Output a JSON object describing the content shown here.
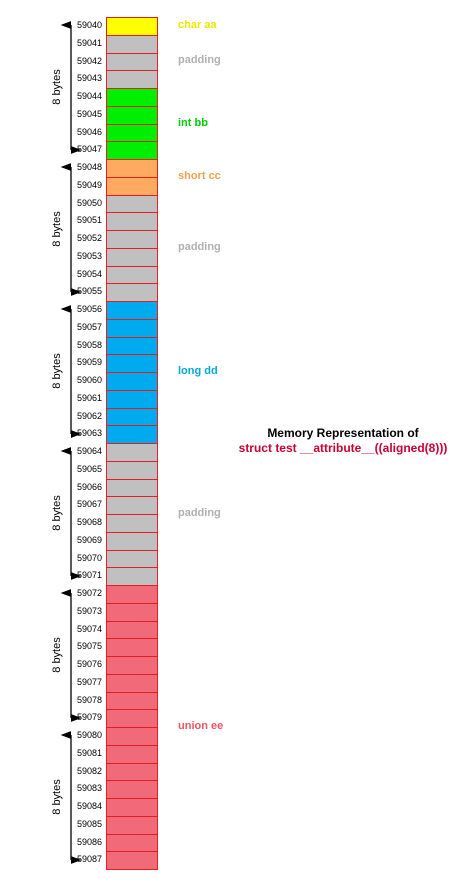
{
  "diagram": {
    "title_line1": "Memory Representation of",
    "title_line2": "struct test __attribute__((aligned(8)))",
    "title_line2_color": "#cc0033",
    "start_address": 59040,
    "end_address": 59087,
    "group_label": "8 bytes",
    "groups": [
      {
        "label": "8 bytes"
      },
      {
        "label": "8 bytes"
      },
      {
        "label": "8 bytes"
      },
      {
        "label": "8 bytes"
      },
      {
        "label": "8 bytes"
      },
      {
        "label": "8 bytes"
      }
    ],
    "blocks": [
      {
        "label": "char aa",
        "count": 1,
        "color": "#ffff00",
        "label_color": "#e8e800"
      },
      {
        "label": "padding",
        "count": 3,
        "color": "#c0c0c0",
        "label_color": "#b0b0b0"
      },
      {
        "label": "int bb",
        "count": 4,
        "color": "#00ee00",
        "label_color": "#00cc00"
      },
      {
        "label": "short cc",
        "count": 2,
        "color": "#ffaa60",
        "label_color": "#f0a050"
      },
      {
        "label": "padding",
        "count": 6,
        "color": "#c0c0c0",
        "label_color": "#b0b0b0"
      },
      {
        "label": "long dd",
        "count": 8,
        "color": "#00aaee",
        "label_color": "#00a8d8"
      },
      {
        "label": "padding",
        "count": 8,
        "color": "#c0c0c0",
        "label_color": "#b0b0b0"
      },
      {
        "label": "union ee",
        "count": 16,
        "color": "#f06a7a",
        "label_color": "#ee5566"
      }
    ]
  }
}
